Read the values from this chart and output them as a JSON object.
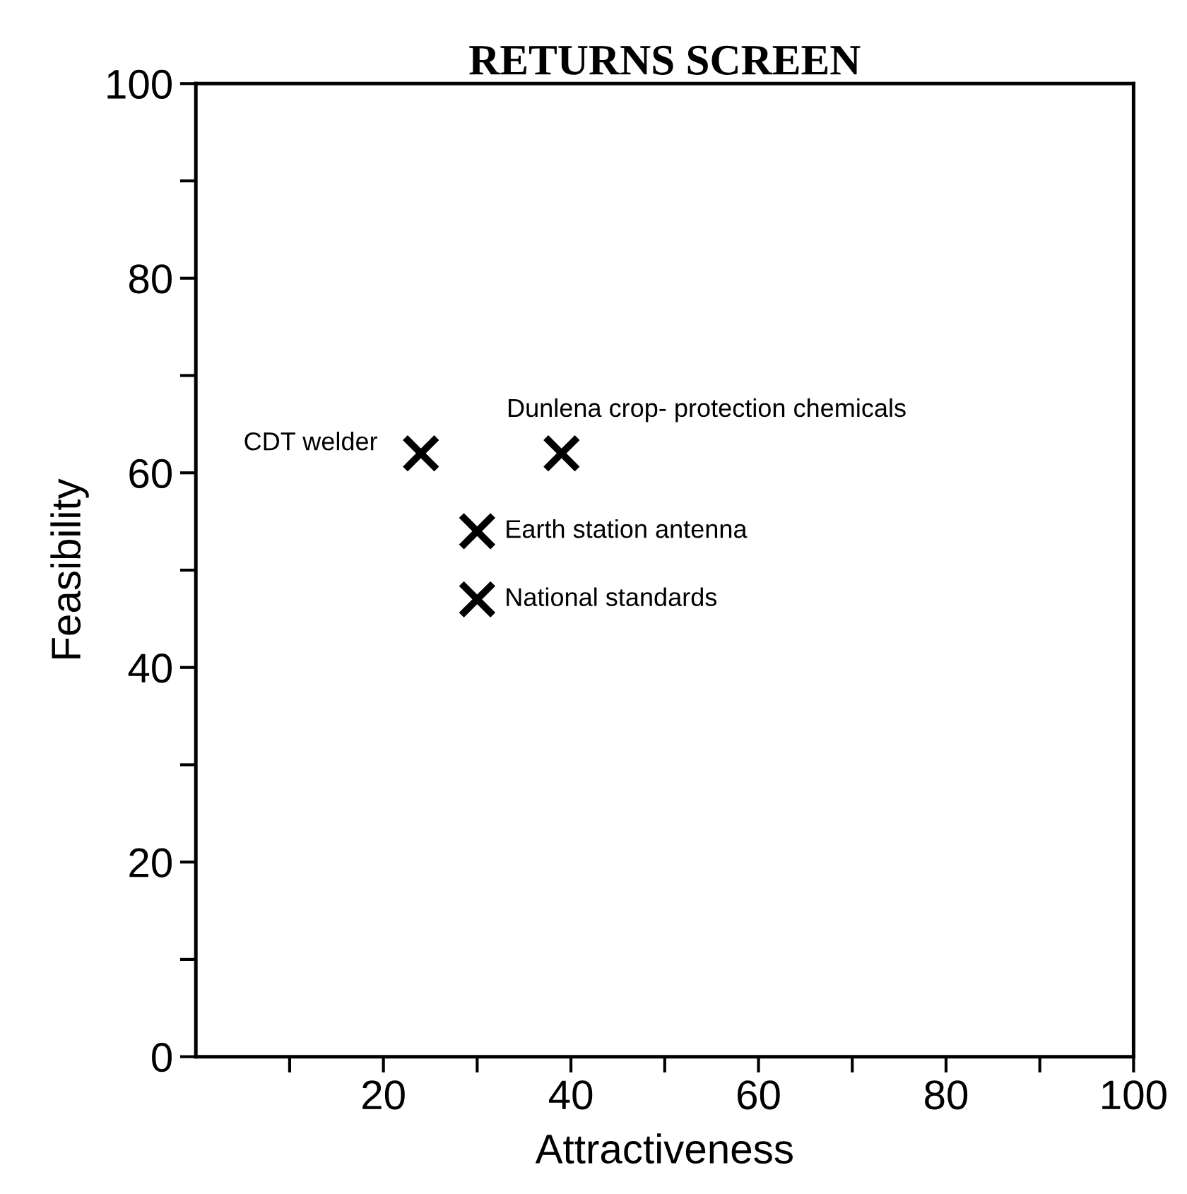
{
  "chart_data": {
    "type": "scatter",
    "title": "RETURNS SCREEN",
    "xlabel": "Attractiveness",
    "ylabel": "Feasibility",
    "x": [
      24,
      39,
      30,
      30
    ],
    "values": [
      62,
      62,
      54,
      47
    ],
    "color": "#000000",
    "marker": "cross",
    "xlim": [
      0,
      100
    ],
    "ylim": [
      0,
      100
    ],
    "xticks": [
      {
        "value": 10,
        "label": null
      },
      20,
      {
        "value": 30,
        "label": null
      },
      40,
      {
        "value": 50,
        "label": null
      },
      60,
      {
        "value": 70,
        "label": null
      },
      80,
      {
        "value": 90,
        "label": null
      },
      100
    ],
    "yticks": [
      0,
      {
        "value": 10,
        "label": null
      },
      20,
      {
        "value": 30,
        "label": null
      },
      40,
      {
        "value": 50,
        "label": null
      },
      60,
      {
        "value": 70,
        "label": null
      },
      80,
      {
        "value": 90,
        "label": null
      },
      100
    ],
    "annotations": [
      {
        "text": "CDT welder",
        "x": 24,
        "y": 62
      },
      {
        "text": "Dunlena crop- protection chemicals",
        "x": 39,
        "y": 62
      },
      {
        "text": "Earth station antenna",
        "x": 30,
        "y": 54
      },
      {
        "text": "National standards",
        "x": 30,
        "y": 47
      }
    ],
    "grid": false,
    "legend": false
  }
}
